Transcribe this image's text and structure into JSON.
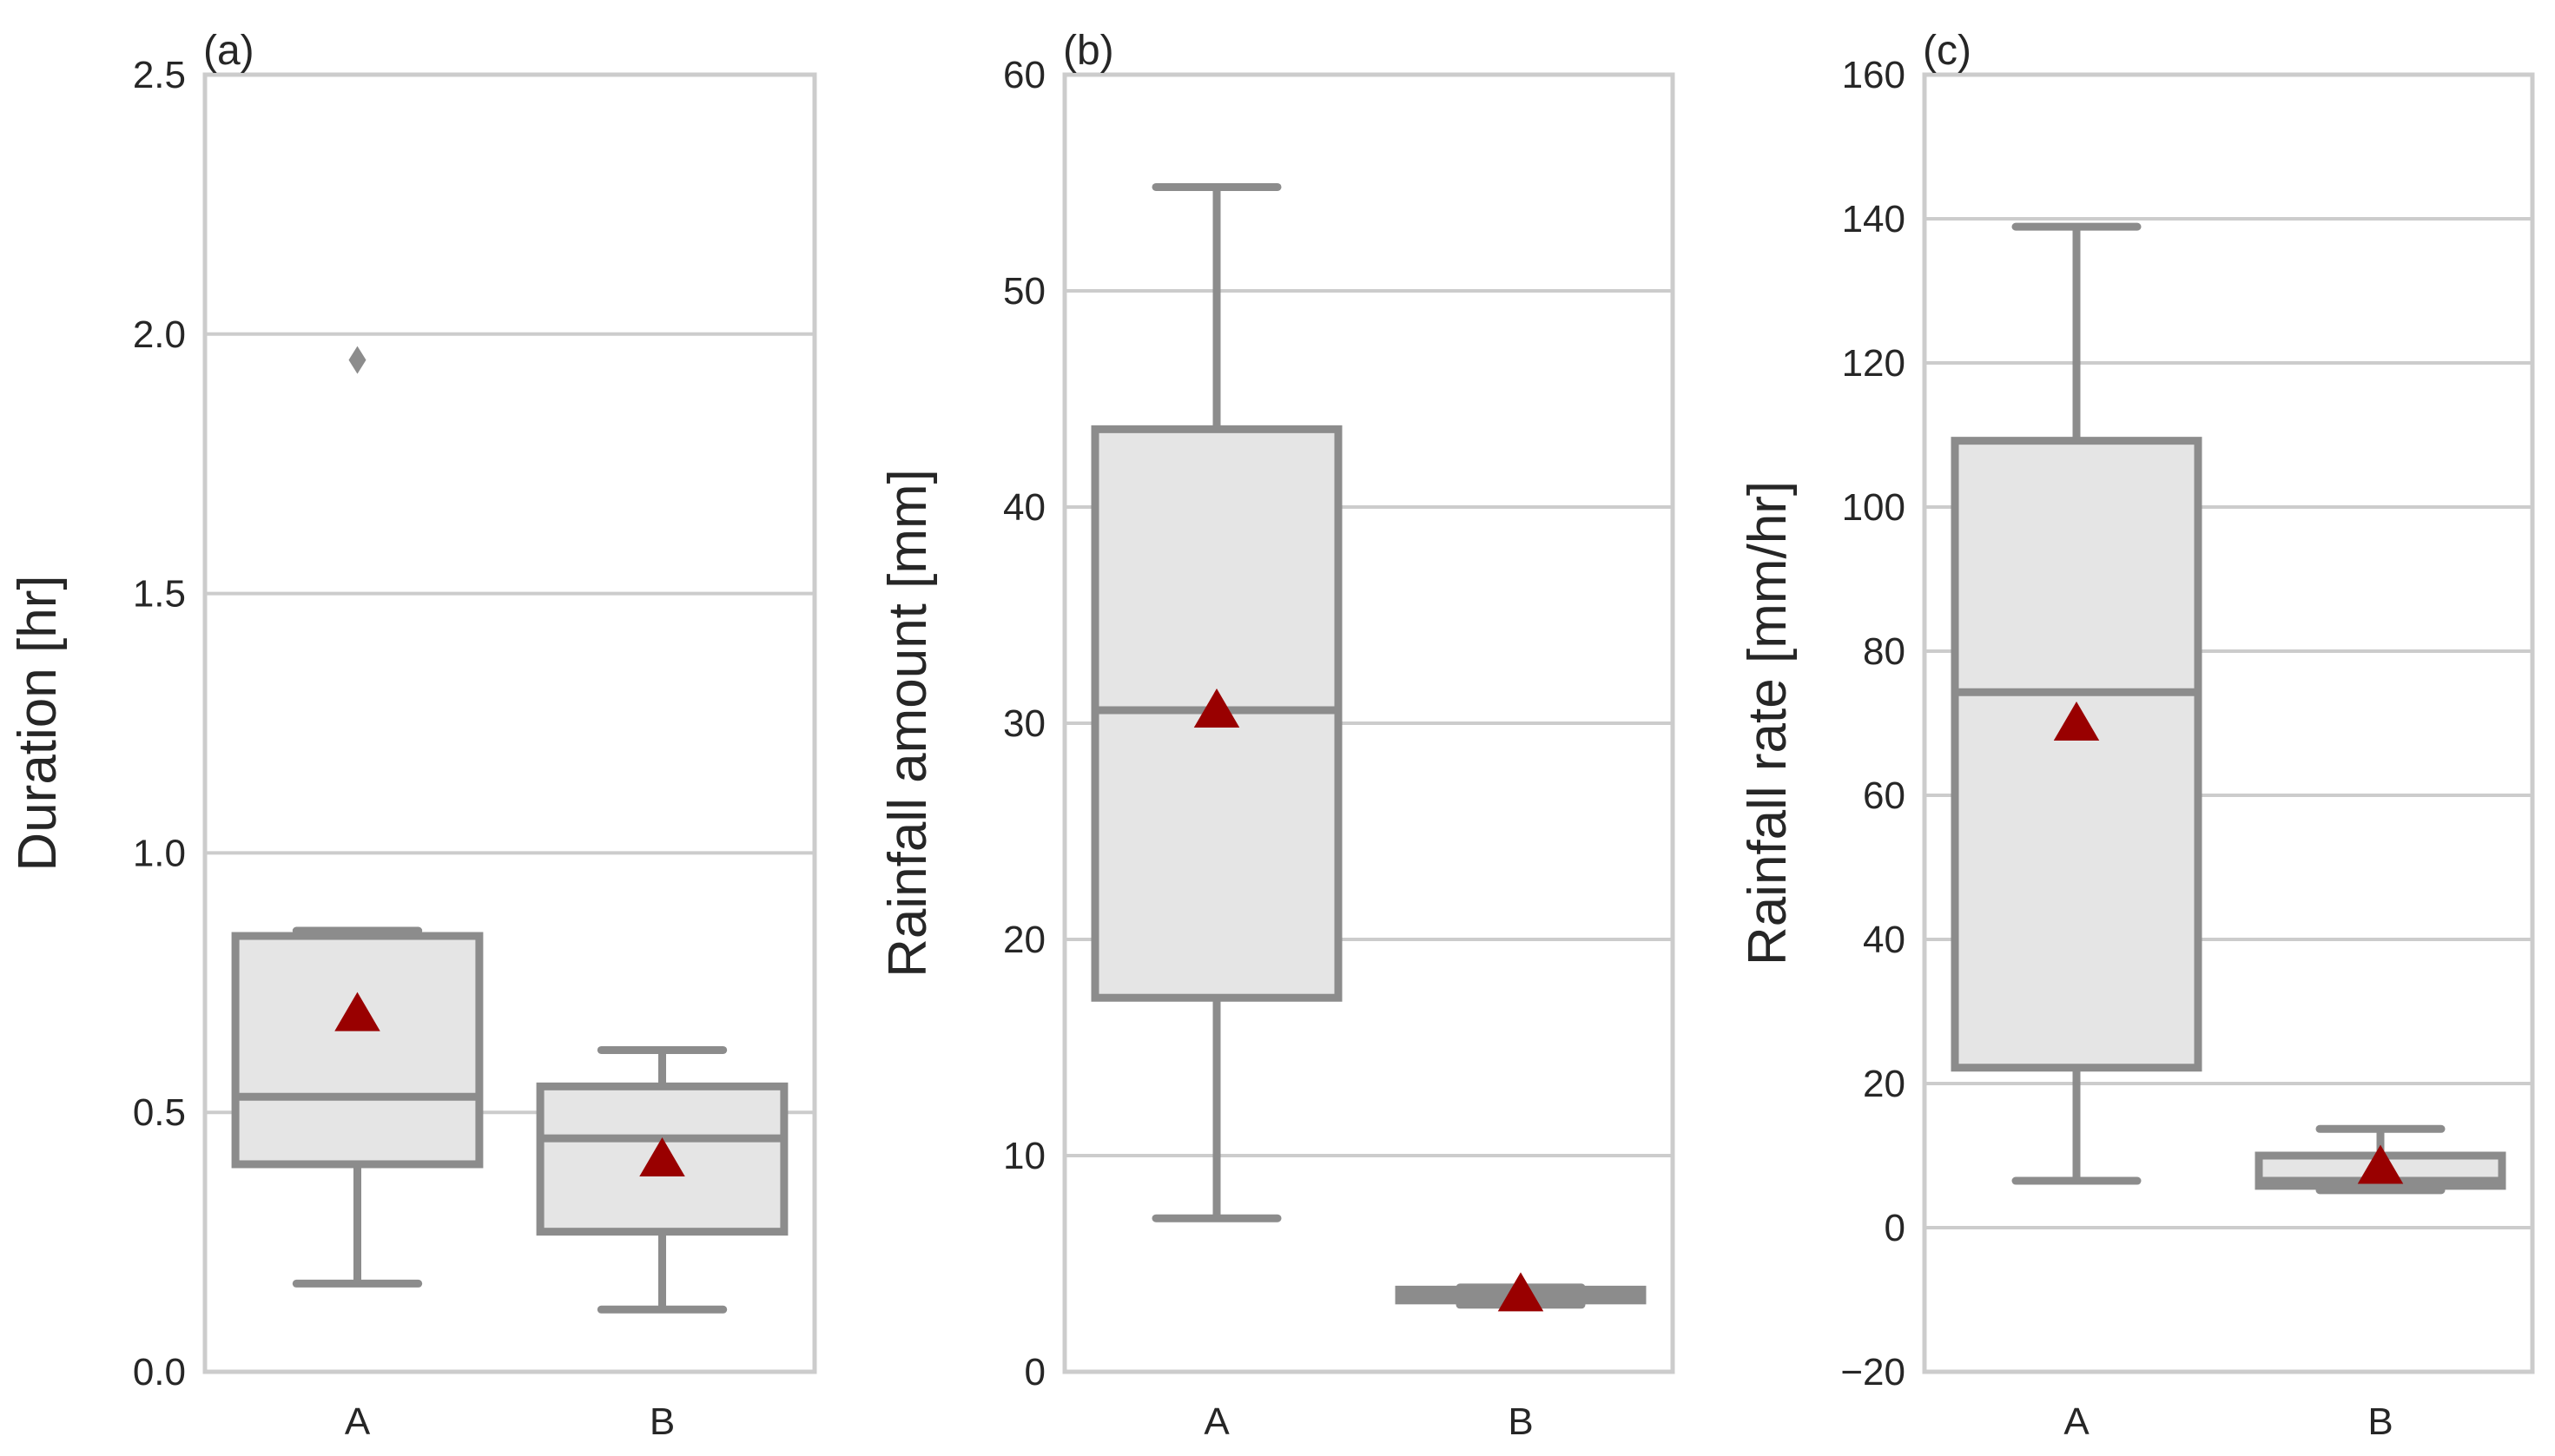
{
  "chart_data": [
    {
      "type": "box",
      "panel_label": "(a)",
      "ylabel": "Duration [hr]",
      "ylim": [
        0,
        2.5
      ],
      "yticks": [
        0.0,
        0.5,
        1.0,
        1.5,
        2.0,
        2.5
      ],
      "ytick_labels": [
        "0.0",
        "0.5",
        "1.0",
        "1.5",
        "2.0",
        "2.5"
      ],
      "categories": [
        "A",
        "B"
      ],
      "boxes": [
        {
          "category": "A",
          "whisker_low": 0.17,
          "q1": 0.4,
          "median": 0.53,
          "q3": 0.84,
          "whisker_high": 0.85,
          "mean": 0.69,
          "outliers": [
            1.95
          ]
        },
        {
          "category": "B",
          "whisker_low": 0.12,
          "q1": 0.27,
          "median": 0.45,
          "q3": 0.55,
          "whisker_high": 0.62,
          "mean": 0.41,
          "outliers": []
        }
      ],
      "grid": true
    },
    {
      "type": "box",
      "panel_label": "(b)",
      "ylabel": "Rainfall amount [mm]",
      "ylim": [
        0,
        60
      ],
      "yticks": [
        0,
        10,
        20,
        30,
        40,
        50,
        60
      ],
      "ytick_labels": [
        "0",
        "10",
        "20",
        "30",
        "40",
        "50",
        "60"
      ],
      "categories": [
        "A",
        "B"
      ],
      "boxes": [
        {
          "category": "A",
          "whisker_low": 7.1,
          "q1": 17.3,
          "median": 30.6,
          "q3": 43.6,
          "whisker_high": 54.8,
          "mean": 30.6,
          "outliers": []
        },
        {
          "category": "B",
          "whisker_low": 3.1,
          "q1": 3.3,
          "median": 3.5,
          "q3": 3.8,
          "whisker_high": 3.9,
          "mean": 3.6,
          "outliers": []
        }
      ],
      "grid": true
    },
    {
      "type": "box",
      "panel_label": "(c)",
      "ylabel": "Rainfall rate [mm/hr]",
      "ylim": [
        -20,
        160
      ],
      "yticks": [
        -20,
        0,
        20,
        40,
        60,
        80,
        100,
        120,
        140,
        160
      ],
      "ytick_labels": [
        "−20",
        "0",
        "20",
        "40",
        "60",
        "80",
        "100",
        "120",
        "140",
        "160"
      ],
      "categories": [
        "A",
        "B"
      ],
      "boxes": [
        {
          "category": "A",
          "whisker_low": 6.5,
          "q1": 22.2,
          "median": 74.3,
          "q3": 109.2,
          "whisker_high": 138.9,
          "mean": 70.0,
          "outliers": []
        },
        {
          "category": "B",
          "whisker_low": 5.2,
          "q1": 5.8,
          "median": 6.5,
          "q3": 10.0,
          "whisker_high": 13.7,
          "mean": 8.5,
          "outliers": []
        }
      ],
      "grid": true
    }
  ],
  "colors": {
    "box_fill": "#e5e5e5",
    "box_line": "#8c8c8c",
    "grid": "#cccccc",
    "frame": "#cccccc",
    "mean_marker": "#990000",
    "text": "#262626"
  }
}
